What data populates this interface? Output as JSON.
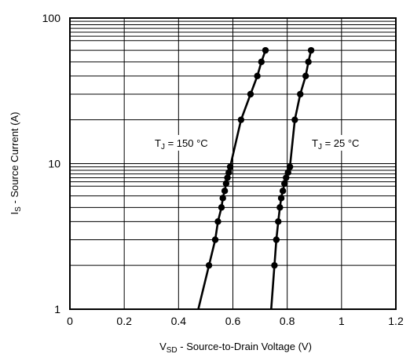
{
  "chart_data": {
    "type": "scatter",
    "x_scale": "linear",
    "y_scale": "log",
    "xlim": [
      0,
      1.2
    ],
    "ylim": [
      1,
      100
    ],
    "xticks": [
      "0",
      "0.2",
      "0.4",
      "0.6",
      "0.8",
      "1",
      "1.2"
    ],
    "yticks": [
      "1",
      "10",
      "100"
    ],
    "xlabel": {
      "main": "V",
      "sub": "SD",
      "rest": " - Source-to-Drain Voltage (V)"
    },
    "ylabel": {
      "main": "I",
      "sub": "S",
      "rest": " - Source Current (A)"
    },
    "grid": true,
    "series": [
      {
        "name": {
          "main": "T",
          "sub": "J",
          "rest": " = 150 °C"
        },
        "color": "#000000",
        "x": [
          0.512,
          0.535,
          0.545,
          0.558,
          0.563,
          0.57,
          0.575,
          0.58,
          0.585,
          0.59,
          0.63,
          0.665,
          0.69,
          0.705,
          0.72
        ],
        "y": [
          2.0,
          3.0,
          4.0,
          5.0,
          5.8,
          6.5,
          7.3,
          8.0,
          8.7,
          9.5,
          20.0,
          30.0,
          40.0,
          50.0,
          60.0
        ]
      },
      {
        "name": {
          "main": "T",
          "sub": "J",
          "rest": " = 25 °C"
        },
        "color": "#000000",
        "x": [
          0.753,
          0.76,
          0.767,
          0.773,
          0.778,
          0.784,
          0.79,
          0.796,
          0.803,
          0.81,
          0.828,
          0.848,
          0.868,
          0.878,
          0.888
        ],
        "y": [
          2.0,
          3.0,
          4.0,
          5.0,
          5.8,
          6.5,
          7.3,
          8.0,
          8.7,
          9.5,
          20.0,
          30.0,
          40.0,
          50.0,
          60.0
        ]
      }
    ]
  }
}
